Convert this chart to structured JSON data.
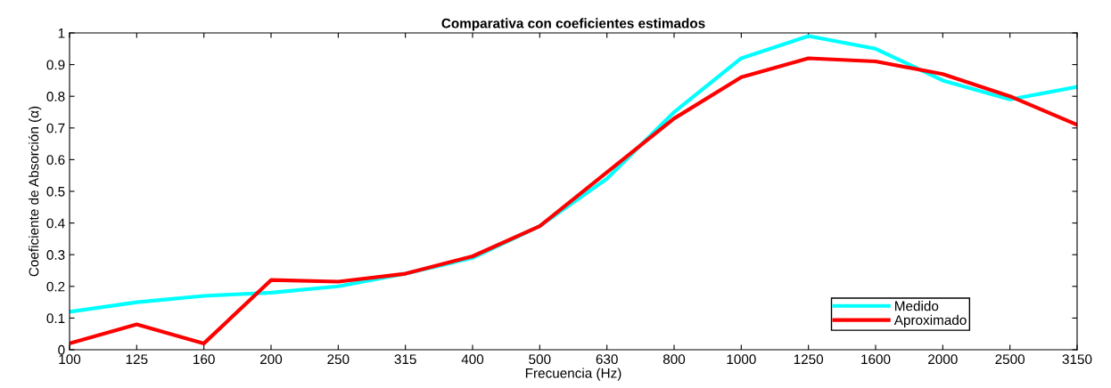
{
  "chart_data": {
    "type": "line",
    "title": "Comparativa con coeficientes estimados",
    "xlabel": "Frecuencia (Hz)",
    "ylabel": "Coeficiente de Absorción (α)",
    "categories": [
      "100",
      "125",
      "160",
      "200",
      "250",
      "315",
      "400",
      "500",
      "630",
      "800",
      "1000",
      "1250",
      "1600",
      "2000",
      "2500",
      "3150"
    ],
    "series": [
      {
        "name": "Medido",
        "color": "#00ffff",
        "values": [
          0.12,
          0.15,
          0.17,
          0.18,
          0.2,
          0.24,
          0.29,
          0.39,
          0.54,
          0.75,
          0.92,
          0.99,
          0.95,
          0.85,
          0.79,
          0.83
        ]
      },
      {
        "name": "Aproximado",
        "color": "#ff0000",
        "values": [
          0.02,
          0.08,
          0.02,
          0.22,
          0.215,
          0.24,
          0.295,
          0.39,
          0.56,
          0.73,
          0.86,
          0.92,
          0.91,
          0.87,
          0.8,
          0.71
        ]
      }
    ],
    "ylim": [
      0,
      1
    ],
    "yticks": [
      0,
      0.1,
      0.2,
      0.3,
      0.4,
      0.5,
      0.6,
      0.7,
      0.8,
      0.9,
      1
    ],
    "grid": false,
    "legend": "bottom right",
    "marker": "none",
    "line_style": "solid"
  }
}
